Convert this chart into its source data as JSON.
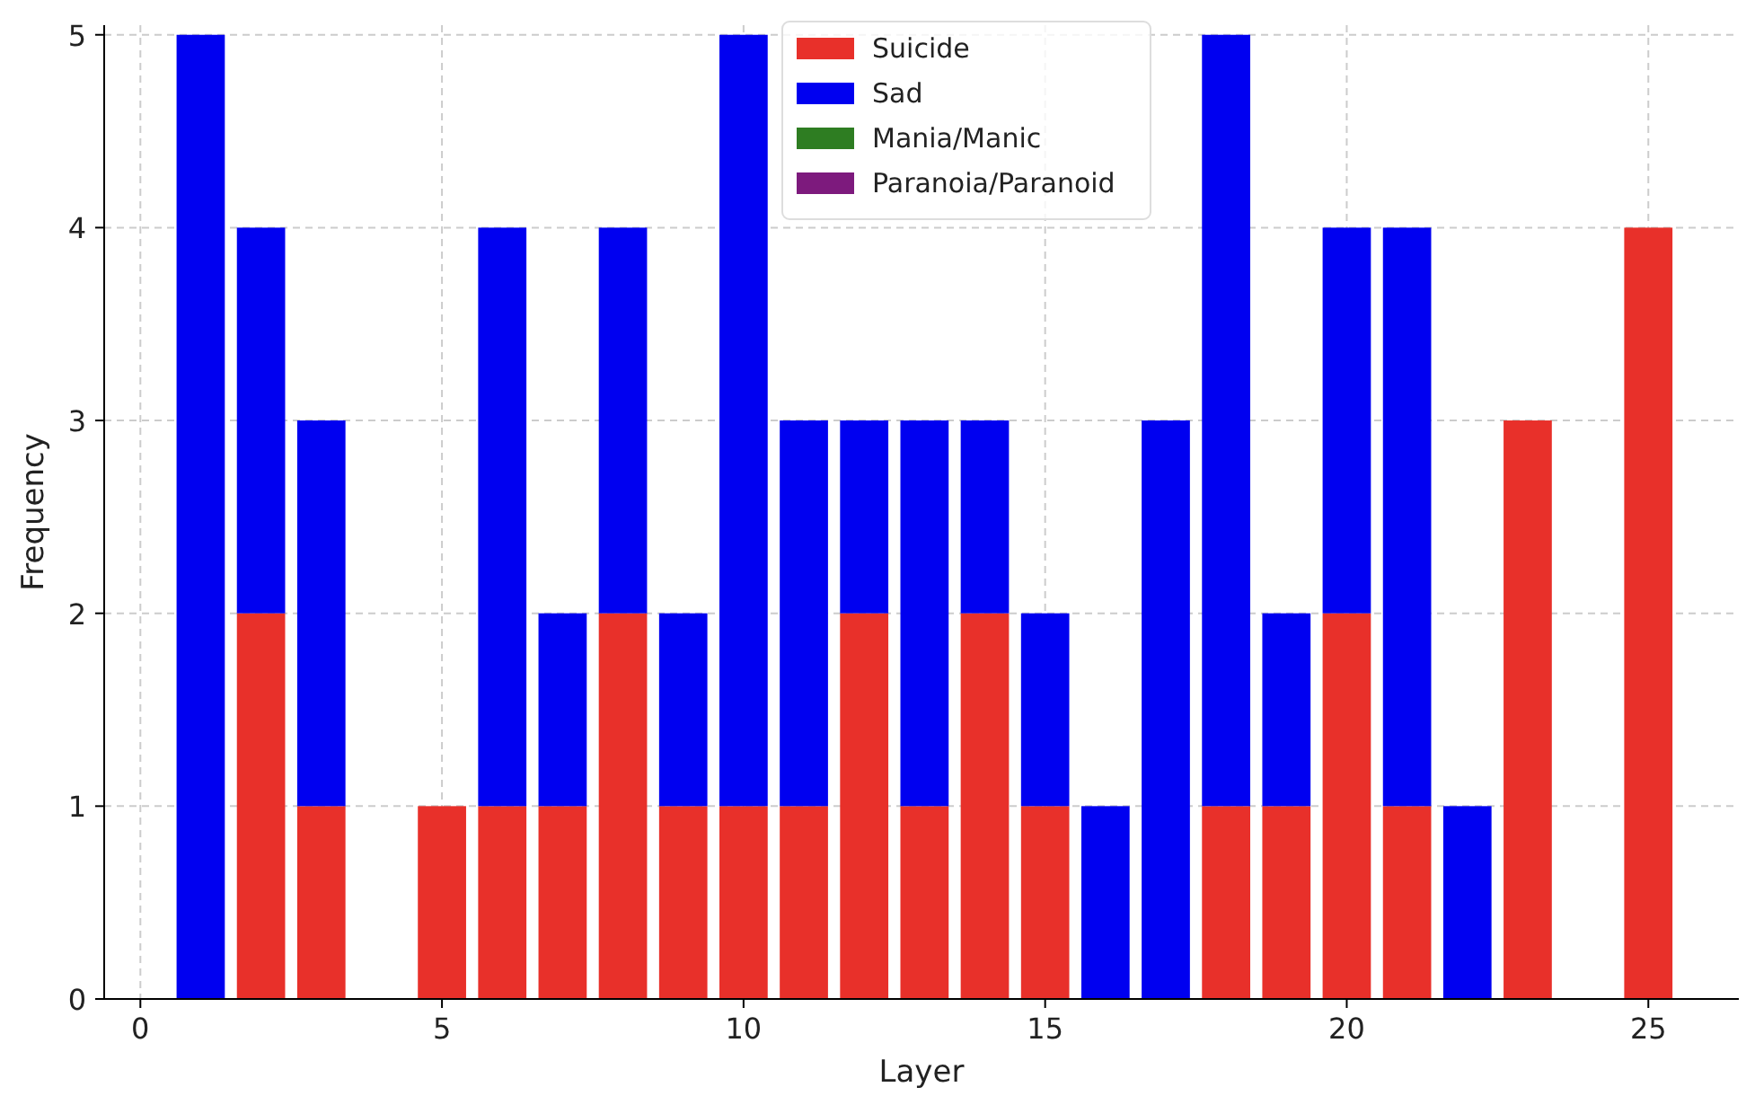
{
  "chart_data": {
    "type": "bar",
    "stacked": true,
    "xlabel": "Layer",
    "ylabel": "Frequency",
    "x": [
      1,
      2,
      3,
      4,
      5,
      6,
      7,
      8,
      9,
      10,
      11,
      12,
      13,
      14,
      15,
      16,
      17,
      18,
      19,
      20,
      21,
      22,
      23,
      24,
      25
    ],
    "series": [
      {
        "name": "Suicide",
        "color": "#e8302a",
        "values": [
          null,
          2,
          1,
          null,
          1,
          1,
          1,
          2,
          1,
          1,
          1,
          2,
          1,
          2,
          1,
          null,
          null,
          1,
          1,
          2,
          1,
          null,
          3,
          null,
          4
        ]
      },
      {
        "name": "Sad",
        "color": "#0000f0",
        "values": [
          5,
          2,
          2,
          null,
          null,
          3,
          1,
          2,
          1,
          4,
          2,
          1,
          2,
          1,
          1,
          1,
          3,
          4,
          1,
          2,
          3,
          1,
          null,
          null,
          null
        ]
      },
      {
        "name": "Mania/Manic",
        "color": "#2e7d22",
        "values": [
          null,
          null,
          null,
          null,
          null,
          null,
          null,
          null,
          null,
          null,
          null,
          null,
          null,
          null,
          null,
          null,
          null,
          null,
          null,
          null,
          null,
          null,
          null,
          null,
          null
        ]
      },
      {
        "name": "Paranoia/Paranoid",
        "color": "#7d1a7d",
        "values": [
          null,
          null,
          null,
          null,
          null,
          null,
          null,
          null,
          null,
          null,
          null,
          null,
          null,
          null,
          null,
          null,
          null,
          null,
          null,
          null,
          null,
          null,
          null,
          null,
          null
        ]
      }
    ],
    "xlim": [
      -0.6,
      26.5
    ],
    "xticks": [
      0,
      5,
      10,
      15,
      20,
      25
    ],
    "ylim": [
      0,
      5.05
    ],
    "yticks": [
      0,
      1,
      2,
      3,
      4,
      5
    ],
    "grid": true,
    "legend": "top"
  }
}
